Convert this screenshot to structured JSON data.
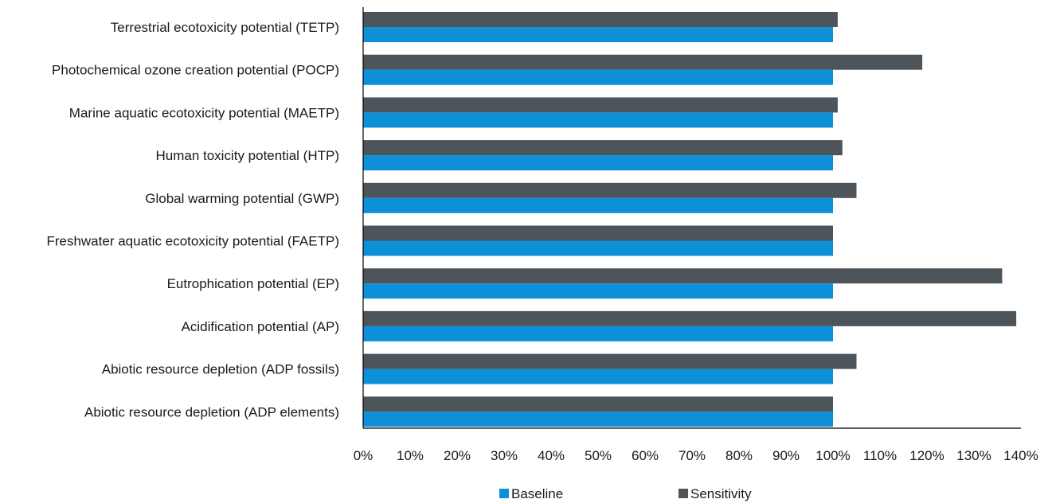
{
  "chart_data": {
    "type": "bar",
    "orientation": "horizontal",
    "categories": [
      "Terrestrial ecotoxicity potential (TETP)",
      "Photochemical ozone creation potential (POCP)",
      "Marine aquatic ecotoxicity potential (MAETP)",
      "Human toxicity potential (HTP)",
      "Global warming potential (GWP)",
      "Freshwater aquatic ecotoxicity potential (FAETP)",
      "Eutrophication potential (EP)",
      "Acidification potential (AP)",
      "Abiotic resource depletion (ADP fossils)",
      "Abiotic resource depletion (ADP elements)"
    ],
    "series": [
      {
        "name": "Sensitivity",
        "color": "#4d555b",
        "values": [
          101,
          119,
          101,
          102,
          105,
          100,
          136,
          139,
          105,
          100
        ]
      },
      {
        "name": "Baseline",
        "color": "#0d90d8",
        "values": [
          100,
          100,
          100,
          100,
          100,
          100,
          100,
          100,
          100,
          100
        ]
      }
    ],
    "xlim": [
      0,
      140
    ],
    "xticks": [
      "0%",
      "10%",
      "20%",
      "30%",
      "40%",
      "50%",
      "60%",
      "70%",
      "80%",
      "90%",
      "100%",
      "110%",
      "120%",
      "130%",
      "140%"
    ],
    "grid": false,
    "legend": {
      "position": "bottom",
      "entries": [
        "Baseline",
        "Sensitivity"
      ]
    }
  }
}
